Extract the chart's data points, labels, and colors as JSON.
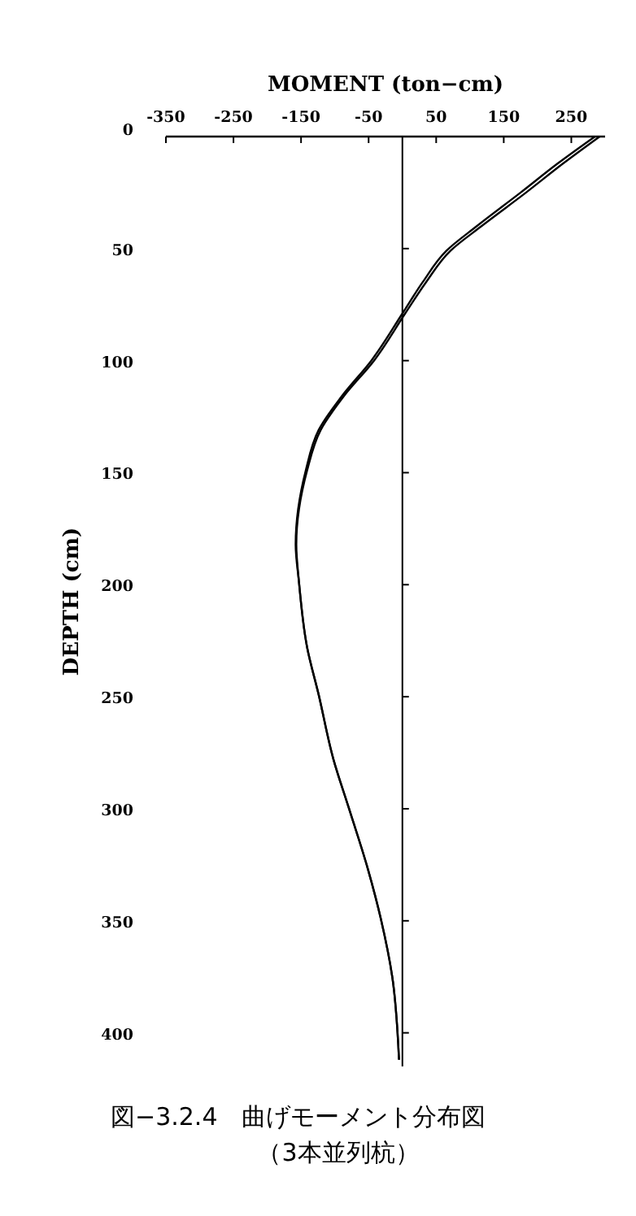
{
  "chart_data": {
    "type": "line",
    "xlabel": "MOMENT (ton−cm)",
    "ylabel": "DEPTH (cm)",
    "xlim": [
      -350,
      300
    ],
    "xticks": [
      -350,
      -250,
      -150,
      -50,
      50,
      150,
      250
    ],
    "ylim": [
      415,
      0
    ],
    "yticks": [
      0,
      50,
      100,
      150,
      200,
      250,
      300,
      350,
      400
    ],
    "series": [
      {
        "color": "#000000",
        "x": [
          285,
          230,
          175,
          110,
          65,
          30,
          0,
          -46,
          -90,
          -124,
          -143,
          -158,
          -153,
          -141,
          -124,
          -102,
          -80,
          -51,
          -32,
          -15,
          -5
        ],
        "values": [
          0,
          12,
          25,
          40,
          51,
          65,
          79,
          100,
          116,
          131,
          149,
          182,
          199,
          228,
          249,
          278,
          299,
          327,
          349,
          375,
          412
        ]
      },
      {
        "color": "#000000",
        "x": [
          292,
          238,
          183,
          117,
          71,
          35,
          4,
          -42,
          -87,
          -121,
          -141,
          -157,
          -153,
          -141,
          -124,
          -102,
          -80,
          -51,
          -32,
          -15,
          -5
        ],
        "values": [
          0,
          12,
          25,
          40,
          51,
          65,
          79,
          100,
          116,
          131,
          149,
          182,
          199,
          228,
          249,
          278,
          299,
          327,
          349,
          375,
          412
        ]
      }
    ],
    "annotations": [
      "図−3.2.4　曲げモーメント分布図",
      "（3本並列杭）"
    ]
  }
}
